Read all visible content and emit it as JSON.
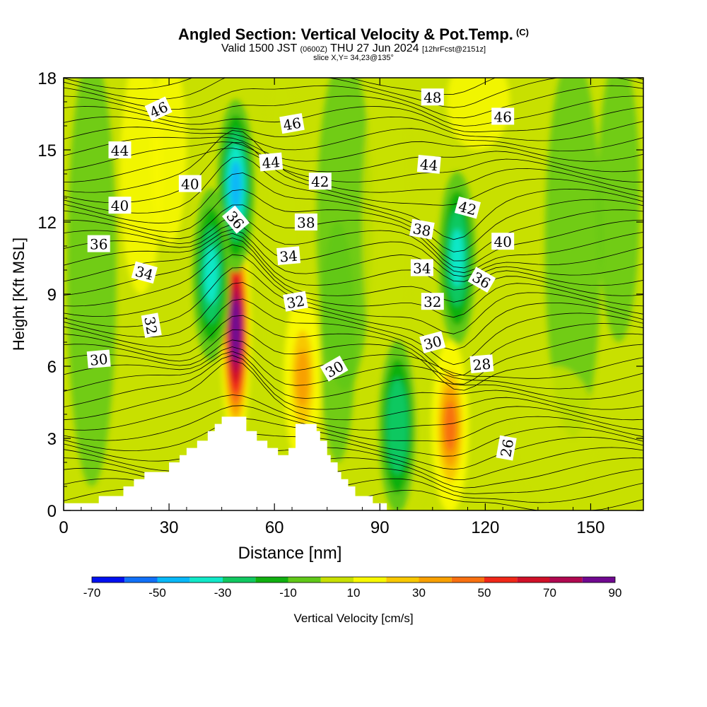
{
  "header": {
    "title": "Angled Section: Vertical Velocity & Pot.Temp.",
    "title_tag": "(C)",
    "valid_prefix": "Valid 1500 JST",
    "valid_utc": "(0600Z)",
    "valid_date": "THU 27 Jun 2024",
    "forecast": "[12hrFcst@2151z]",
    "slice": "slice X,Y= 34,23@135°"
  },
  "chart_data": {
    "type": "heatmap",
    "xlabel": "Distance [nm]",
    "ylabel": "Height [Kft MSL]",
    "xlim": [
      0,
      165
    ],
    "ylim": [
      0,
      18
    ],
    "xticks": [
      0,
      30,
      60,
      90,
      120,
      150
    ],
    "yticks": [
      0,
      3,
      6,
      9,
      12,
      15,
      18
    ],
    "colorbar": {
      "label": "Vertical Velocity [cm/s]",
      "tick_labels": [
        "-70",
        "-50",
        "-30",
        "-10",
        "10",
        "30",
        "50",
        "70",
        "90"
      ],
      "tick_values": [
        -70,
        -50,
        -30,
        -10,
        10,
        30,
        50,
        70,
        90
      ],
      "colors": [
        "#0010f0",
        "#1070f8",
        "#08b8f8",
        "#10e8c8",
        "#10c860",
        "#10b010",
        "#60c818",
        "#c8e000",
        "#f8f800",
        "#f8c800",
        "#f8a000",
        "#f87010",
        "#f02818",
        "#d01028",
        "#b00850",
        "#700890"
      ]
    },
    "velocity_features": [
      {
        "name": "updraft core",
        "x": 49,
        "y": 7.5,
        "w": 90
      },
      {
        "name": "downdraft",
        "x": 49,
        "y": 13.5,
        "w": -45
      },
      {
        "name": "downdraft",
        "x": 42,
        "y": 9.8,
        "w": -35
      },
      {
        "name": "updraft",
        "x": 68,
        "y": 5.5,
        "w": 30
      },
      {
        "name": "downdraft",
        "x": 95,
        "y": 3.5,
        "w": -30
      },
      {
        "name": "downdraft",
        "x": 112,
        "y": 10.5,
        "w": -35
      },
      {
        "name": "updraft",
        "x": 110,
        "y": 3.5,
        "w": 40
      }
    ],
    "terrain": [
      [
        0,
        0.3
      ],
      [
        10,
        0.3
      ],
      [
        10,
        0.6
      ],
      [
        17,
        0.6
      ],
      [
        17,
        1.0
      ],
      [
        20,
        1.0
      ],
      [
        20,
        1.3
      ],
      [
        23,
        1.3
      ],
      [
        23,
        1.6
      ],
      [
        30,
        1.6
      ],
      [
        30,
        2.0
      ],
      [
        33,
        2.0
      ],
      [
        33,
        2.3
      ],
      [
        35,
        2.3
      ],
      [
        35,
        2.6
      ],
      [
        38,
        2.6
      ],
      [
        38,
        2.9
      ],
      [
        41,
        2.9
      ],
      [
        41,
        3.3
      ],
      [
        43,
        3.3
      ],
      [
        43,
        3.6
      ],
      [
        45,
        3.6
      ],
      [
        45,
        3.9
      ],
      [
        52,
        3.9
      ],
      [
        52,
        3.3
      ],
      [
        55,
        3.3
      ],
      [
        55,
        2.9
      ],
      [
        58,
        2.9
      ],
      [
        58,
        2.6
      ],
      [
        61,
        2.6
      ],
      [
        61,
        2.3
      ],
      [
        64,
        2.3
      ],
      [
        64,
        2.6
      ],
      [
        66,
        2.6
      ],
      [
        66,
        3.6
      ],
      [
        72,
        3.6
      ],
      [
        72,
        3.3
      ],
      [
        73,
        3.3
      ],
      [
        73,
        2.9
      ],
      [
        75,
        2.9
      ],
      [
        75,
        2.3
      ],
      [
        76,
        2.3
      ],
      [
        76,
        2.0
      ],
      [
        78,
        2.0
      ],
      [
        78,
        1.6
      ],
      [
        79,
        1.6
      ],
      [
        79,
        1.3
      ],
      [
        81,
        1.3
      ],
      [
        81,
        1.0
      ],
      [
        83,
        1.0
      ],
      [
        83,
        0.6
      ],
      [
        88,
        0.6
      ],
      [
        88,
        0.3
      ],
      [
        92,
        0.3
      ],
      [
        92,
        0
      ],
      [
        165,
        0
      ]
    ],
    "isentrope_labels": [
      {
        "text": "46",
        "x": 27,
        "y": 16.7,
        "angle": -25
      },
      {
        "text": "44",
        "x": 16,
        "y": 15.0,
        "angle": 0
      },
      {
        "text": "40",
        "x": 36,
        "y": 13.6,
        "angle": 0
      },
      {
        "text": "40",
        "x": 16,
        "y": 12.7,
        "angle": 0
      },
      {
        "text": "36",
        "x": 10,
        "y": 11.1,
        "angle": 0
      },
      {
        "text": "34",
        "x": 23,
        "y": 9.9,
        "angle": 15
      },
      {
        "text": "32",
        "x": 25,
        "y": 7.7,
        "angle": 80
      },
      {
        "text": "30",
        "x": 10,
        "y": 6.3,
        "angle": -5
      },
      {
        "text": "36",
        "x": 49,
        "y": 12.1,
        "angle": 50
      },
      {
        "text": "44",
        "x": 59,
        "y": 14.5,
        "angle": -5
      },
      {
        "text": "46",
        "x": 65,
        "y": 16.1,
        "angle": -10
      },
      {
        "text": "42",
        "x": 73,
        "y": 13.7,
        "angle": 0
      },
      {
        "text": "38",
        "x": 69,
        "y": 12.0,
        "angle": 0
      },
      {
        "text": "34",
        "x": 64,
        "y": 10.6,
        "angle": -5
      },
      {
        "text": "32",
        "x": 66,
        "y": 8.7,
        "angle": -10
      },
      {
        "text": "30",
        "x": 77,
        "y": 5.9,
        "angle": -30
      },
      {
        "text": "48",
        "x": 105,
        "y": 17.2,
        "angle": 0
      },
      {
        "text": "46",
        "x": 125,
        "y": 16.4,
        "angle": 0
      },
      {
        "text": "44",
        "x": 104,
        "y": 14.4,
        "angle": 5
      },
      {
        "text": "42",
        "x": 115,
        "y": 12.6,
        "angle": 15
      },
      {
        "text": "38",
        "x": 102,
        "y": 11.7,
        "angle": 10
      },
      {
        "text": "40",
        "x": 125,
        "y": 11.2,
        "angle": 0
      },
      {
        "text": "34",
        "x": 102,
        "y": 10.1,
        "angle": 0
      },
      {
        "text": "36",
        "x": 119,
        "y": 9.6,
        "angle": 30
      },
      {
        "text": "32",
        "x": 105,
        "y": 8.7,
        "angle": 0
      },
      {
        "text": "30",
        "x": 105,
        "y": 7.0,
        "angle": -15
      },
      {
        "text": "28",
        "x": 119,
        "y": 6.1,
        "angle": -5
      },
      {
        "text": "26",
        "x": 126,
        "y": 2.6,
        "angle": -80
      }
    ]
  }
}
